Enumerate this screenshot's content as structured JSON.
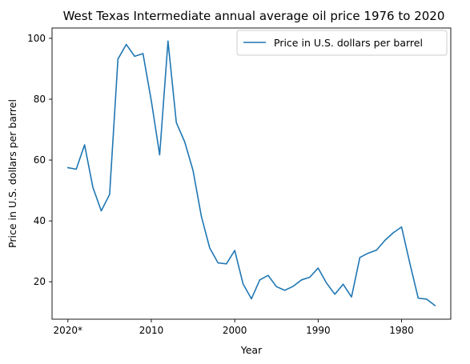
{
  "chart_data": {
    "type": "line",
    "title": "West Texas Intermediate annual average oil price 1976 to 2020",
    "xlabel": "Year",
    "ylabel": "Price in U.S. dollars per barrel",
    "x_reversed": true,
    "xlim": [
      2021.9,
      1974.1
    ],
    "ylim": [
      7.7,
      103.4
    ],
    "x_ticks": [
      {
        "value": 2020,
        "label": "2020*"
      },
      {
        "value": 2010,
        "label": "2010"
      },
      {
        "value": 2000,
        "label": "2000"
      },
      {
        "value": 1990,
        "label": "1990"
      },
      {
        "value": 1980,
        "label": "1980"
      }
    ],
    "y_ticks": [
      20,
      40,
      60,
      80,
      100
    ],
    "grid": false,
    "legend_position": "top-right",
    "colors": {
      "series": "#1f77b4",
      "frame": "#000000"
    },
    "series": [
      {
        "name": "Price in U.S. dollars per barrel",
        "x": [
          2020,
          2019,
          2018,
          2017,
          2016,
          2015,
          2014,
          2013,
          2012,
          2011,
          2010,
          2009,
          2008,
          2007,
          2006,
          2005,
          2004,
          2003,
          2002,
          2001,
          2000,
          1999,
          1998,
          1997,
          1996,
          1995,
          1994,
          1993,
          1992,
          1991,
          1990,
          1989,
          1988,
          1987,
          1986,
          1985,
          1984,
          1983,
          1982,
          1981,
          1980,
          1979,
          1978,
          1977,
          1976
        ],
        "values": [
          57.5,
          57.0,
          65.0,
          51.0,
          43.3,
          48.7,
          93.2,
          98.0,
          94.1,
          95.0,
          79.5,
          61.7,
          99.1,
          72.3,
          66.0,
          56.6,
          41.5,
          31.1,
          26.2,
          25.9,
          30.3,
          19.3,
          14.4,
          20.6,
          22.1,
          18.4,
          17.2,
          18.5,
          20.6,
          21.5,
          24.5,
          19.6,
          15.9,
          19.2,
          15.0,
          28.0,
          29.4,
          30.4,
          33.6,
          36.1,
          38.0,
          26.0,
          14.6,
          14.3,
          12.2
        ]
      }
    ]
  }
}
